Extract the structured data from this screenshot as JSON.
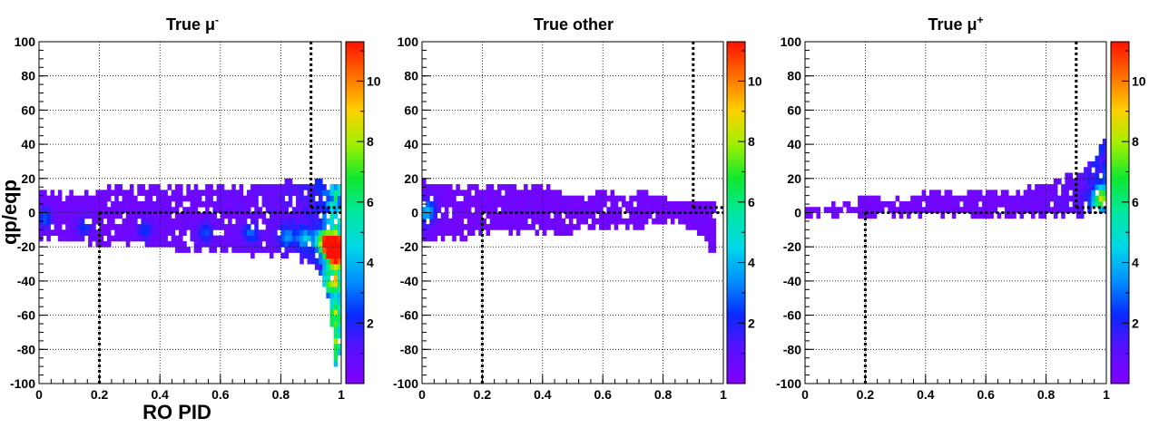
{
  "chart_data": [
    {
      "type": "heatmap",
      "title": "True μ",
      "title_sup": "-",
      "xlabel": "RO PID",
      "ylabel": "qp/eqp",
      "xlim": [
        0,
        1
      ],
      "ylim": [
        -100,
        100
      ],
      "x_ticks": [
        0,
        0.2,
        0.4,
        0.6,
        0.8,
        1
      ],
      "y_ticks": [
        -100,
        -80,
        -60,
        -40,
        -20,
        0,
        20,
        40,
        60,
        80,
        100
      ],
      "colorbar_ticks": [
        2,
        4,
        6,
        8,
        10
      ],
      "colorbar_range": [
        0,
        11.3
      ],
      "grid": true,
      "cut_lines": [
        {
          "x": [
            0.2,
            0.2
          ],
          "y": [
            -100,
            0
          ]
        },
        {
          "x": [
            0.2,
            1.0
          ],
          "y": [
            0,
            0
          ]
        },
        {
          "x": [
            0.9,
            0.9
          ],
          "y": [
            3,
            100
          ]
        },
        {
          "x": [
            0.9,
            1.0
          ],
          "y": [
            3,
            3
          ]
        }
      ],
      "cells": [
        [
          0.02,
          -16,
          14,
          0.6
        ],
        [
          0.08,
          -18,
          14,
          0.5
        ],
        [
          0.14,
          -18,
          14,
          0.6
        ],
        [
          0.22,
          -19,
          15,
          0.5
        ],
        [
          0.3,
          -20,
          15,
          0.6
        ],
        [
          0.38,
          -21,
          15,
          0.6
        ],
        [
          0.46,
          -22,
          16,
          0.7
        ],
        [
          0.54,
          -23,
          17,
          0.7
        ],
        [
          0.62,
          -24,
          17,
          0.8
        ],
        [
          0.7,
          -25,
          18,
          0.8
        ],
        [
          0.78,
          -26,
          18,
          1.0
        ],
        [
          0.84,
          -27,
          19,
          1.2
        ],
        [
          0.9,
          -30,
          19,
          1.5
        ],
        [
          0.94,
          -40,
          19,
          2.5
        ],
        [
          0.96,
          -55,
          18,
          4.0
        ],
        [
          0.98,
          -90,
          18,
          5.5
        ],
        [
          0.995,
          -85,
          16,
          4.5
        ]
      ],
      "hotspots": [
        [
          0.02,
          -3,
          2.2
        ],
        [
          0.15,
          -8,
          1.8
        ],
        [
          0.35,
          -10,
          1.9
        ],
        [
          0.55,
          -12,
          2.0
        ],
        [
          0.7,
          -12,
          2.2
        ],
        [
          0.82,
          -14,
          2.6
        ],
        [
          0.88,
          -15,
          3.2
        ],
        [
          0.94,
          -16,
          5.5
        ],
        [
          0.96,
          -20,
          7.5
        ],
        [
          0.98,
          -25,
          9.5
        ],
        [
          0.99,
          -20,
          11.0
        ],
        [
          0.97,
          -40,
          4.5
        ],
        [
          0.985,
          -60,
          3.0
        ],
        [
          0.99,
          -75,
          2.0
        ]
      ]
    },
    {
      "type": "heatmap",
      "title": "True other",
      "title_sup": "",
      "xlabel": "",
      "ylabel": "",
      "xlim": [
        0,
        1
      ],
      "ylim": [
        -100,
        100
      ],
      "x_ticks": [
        0,
        0.2,
        0.4,
        0.6,
        0.8,
        1
      ],
      "y_ticks": [
        -100,
        -80,
        -60,
        -40,
        -20,
        0,
        20,
        40,
        60,
        80,
        100
      ],
      "colorbar_ticks": [
        2,
        4,
        6,
        8,
        10
      ],
      "colorbar_range": [
        0,
        11.3
      ],
      "grid": true,
      "cut_lines": [
        {
          "x": [
            0.2,
            0.2
          ],
          "y": [
            -100,
            0
          ]
        },
        {
          "x": [
            0.2,
            1.0
          ],
          "y": [
            0,
            0
          ]
        },
        {
          "x": [
            0.9,
            0.9
          ],
          "y": [
            3,
            100
          ]
        },
        {
          "x": [
            0.9,
            1.0
          ],
          "y": [
            3,
            3
          ]
        }
      ],
      "cells": [
        [
          0.01,
          -18,
          20,
          0.8
        ],
        [
          0.05,
          -18,
          18,
          0.6
        ],
        [
          0.1,
          -16,
          18,
          0.5
        ],
        [
          0.18,
          -15,
          17,
          0.5
        ],
        [
          0.26,
          -14,
          16,
          0.5
        ],
        [
          0.34,
          -14,
          16,
          0.5
        ],
        [
          0.42,
          -13,
          15,
          0.5
        ],
        [
          0.5,
          -12,
          14,
          0.5
        ],
        [
          0.58,
          -10,
          14,
          0.5
        ],
        [
          0.66,
          -10,
          13,
          0.5
        ],
        [
          0.74,
          -9,
          12,
          0.5
        ],
        [
          0.8,
          -8,
          10,
          0.5
        ],
        [
          0.86,
          -6,
          8,
          0.5
        ],
        [
          0.96,
          -24,
          8,
          0.5
        ]
      ],
      "hotspots": [
        [
          0.01,
          0,
          2.5
        ],
        [
          0.03,
          2,
          1.5
        ]
      ]
    },
    {
      "type": "heatmap",
      "title": "True μ",
      "title_sup": "+",
      "xlabel": "",
      "ylabel": "",
      "xlim": [
        0,
        1
      ],
      "ylim": [
        -100,
        100
      ],
      "x_ticks": [
        0,
        0.2,
        0.4,
        0.6,
        0.8,
        1
      ],
      "y_ticks": [
        -100,
        -80,
        -60,
        -40,
        -20,
        0,
        20,
        40,
        60,
        80,
        100
      ],
      "colorbar_ticks": [
        2,
        4,
        6,
        8,
        10
      ],
      "colorbar_range": [
        0,
        11.3
      ],
      "grid": true,
      "cut_lines": [
        {
          "x": [
            0.2,
            0.2
          ],
          "y": [
            -100,
            0
          ]
        },
        {
          "x": [
            0.2,
            1.0
          ],
          "y": [
            0,
            0
          ]
        },
        {
          "x": [
            0.9,
            0.9
          ],
          "y": [
            3,
            100
          ]
        },
        {
          "x": [
            0.9,
            1.0
          ],
          "y": [
            3,
            3
          ]
        }
      ],
      "cells": [
        [
          0.02,
          -2,
          4,
          0.5
        ],
        [
          0.08,
          -2,
          5,
          0.5
        ],
        [
          0.16,
          -2,
          8,
          0.5
        ],
        [
          0.24,
          -2,
          10,
          0.5
        ],
        [
          0.32,
          -2,
          11,
          0.5
        ],
        [
          0.4,
          -2,
          12,
          0.5
        ],
        [
          0.48,
          -2,
          12,
          0.5
        ],
        [
          0.56,
          -2,
          13,
          0.5
        ],
        [
          0.64,
          -2,
          14,
          0.5
        ],
        [
          0.72,
          -3,
          15,
          0.6
        ],
        [
          0.78,
          -3,
          17,
          0.7
        ],
        [
          0.84,
          -3,
          20,
          0.9
        ],
        [
          0.88,
          -2,
          23,
          1.0
        ],
        [
          0.92,
          -2,
          27,
          1.3
        ],
        [
          0.95,
          0,
          33,
          1.6
        ],
        [
          0.97,
          0,
          38,
          1.8
        ],
        [
          0.99,
          0,
          45,
          2.2
        ],
        [
          1.0,
          2,
          52,
          2.0
        ]
      ],
      "hotspots": [
        [
          0.97,
          5,
          2.8
        ],
        [
          0.99,
          8,
          3.0
        ],
        [
          0.98,
          12,
          2.5
        ]
      ]
    }
  ]
}
